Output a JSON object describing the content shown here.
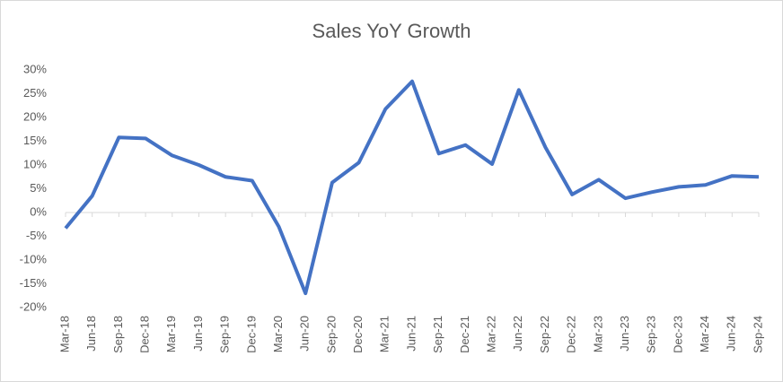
{
  "chart_data": {
    "type": "line",
    "title": "Sales YoY Growth",
    "categories": [
      "Mar-18",
      "Jun-18",
      "Sep-18",
      "Dec-18",
      "Mar-19",
      "Jun-19",
      "Sep-19",
      "Dec-19",
      "Mar-20",
      "Jun-20",
      "Sep-20",
      "Dec-20",
      "Mar-21",
      "Jun-21",
      "Sep-21",
      "Dec-21",
      "Mar-22",
      "Jun-22",
      "Sep-22",
      "Dec-22",
      "Mar-23",
      "Jun-23",
      "Sep-23",
      "Dec-23",
      "Mar-24",
      "Jun-24",
      "Sep-24"
    ],
    "values": [
      -3.3,
      3.5,
      15.8,
      15.6,
      12,
      10,
      7.5,
      6.7,
      -3,
      -17,
      6.3,
      10.5,
      21.8,
      27.6,
      12.4,
      14.2,
      10.2,
      25.8,
      13.7,
      3.8,
      6.9,
      3,
      4.3,
      5.4,
      5.8,
      7.7,
      7.5
    ],
    "color": "#4472c4",
    "ylim": [
      -20,
      30
    ],
    "yticks": [
      {
        "value": -20,
        "label": "-20%"
      },
      {
        "value": -15,
        "label": "-15%"
      },
      {
        "value": -10,
        "label": "-10%"
      },
      {
        "value": -5,
        "label": "-5%"
      },
      {
        "value": 0,
        "label": "0%"
      },
      {
        "value": 5,
        "label": "5%"
      },
      {
        "value": 10,
        "label": "10%"
      },
      {
        "value": 15,
        "label": "15%"
      },
      {
        "value": 20,
        "label": "20%"
      },
      {
        "value": 25,
        "label": "25%"
      },
      {
        "value": 30,
        "label": "30%"
      }
    ],
    "grid": false
  }
}
